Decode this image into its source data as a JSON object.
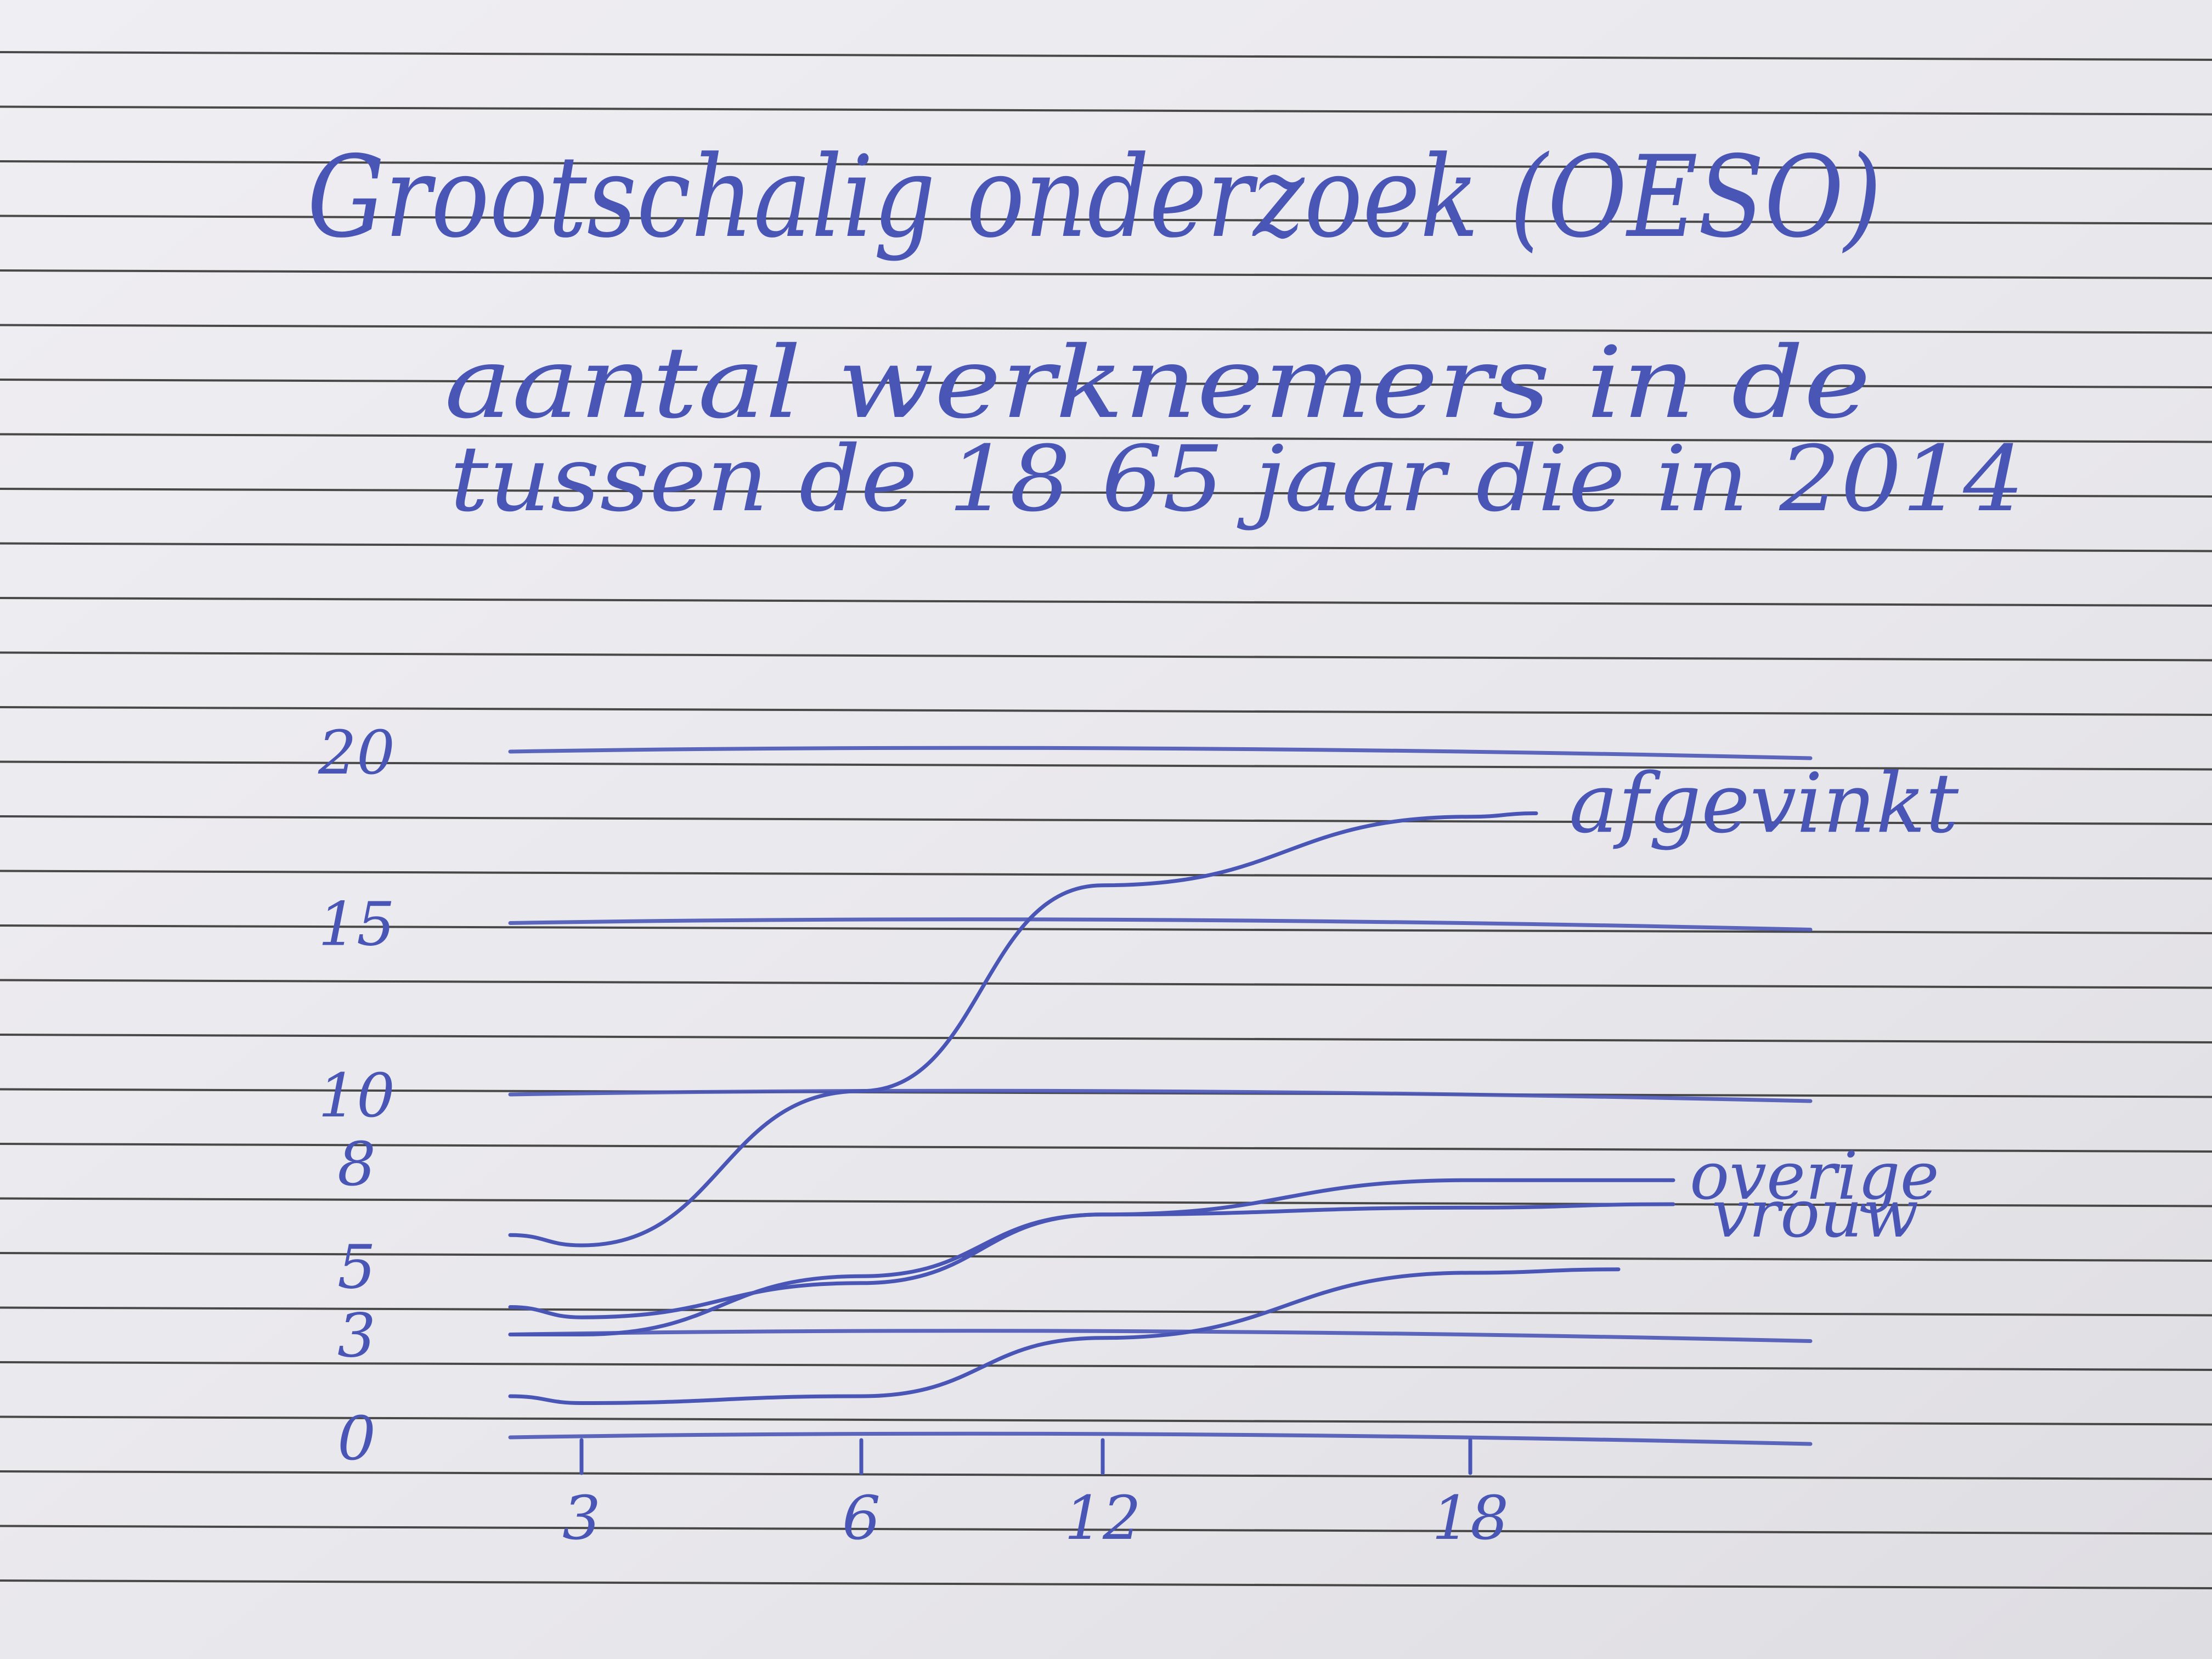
{
  "note": {
    "title": "Grootschalig onderzoek (OESO)",
    "subtitle_line1": "aantal werknemers in de",
    "subtitle_line2": "tussen de 18 65 jaar die in 2014"
  },
  "chart_data": {
    "type": "line",
    "x": [
      3,
      6,
      12,
      18
    ],
    "x_tick_labels": [
      "3",
      "6",
      "12",
      "18"
    ],
    "y_tick_labels": [
      "20",
      "15",
      "10",
      "8",
      "5",
      "3",
      "0"
    ],
    "ylim": [
      0,
      20
    ],
    "grid": true,
    "series": [
      {
        "name": "afgevinkt",
        "values": [
          5.6,
          10.1,
          16.1,
          18.1
        ]
      },
      {
        "name": "overige",
        "values": [
          3.5,
          4.5,
          6.5,
          7.5
        ]
      },
      {
        "name": "vrouw",
        "values": [
          3.0,
          4.7,
          6.5,
          6.7
        ]
      },
      {
        "name": "",
        "values": [
          1.0,
          1.2,
          2.9,
          4.8
        ]
      }
    ]
  },
  "colors": {
    "paper": "#e9e8ec",
    "ruled_line": "#2b2b2b",
    "ink": "#4a56b6"
  }
}
